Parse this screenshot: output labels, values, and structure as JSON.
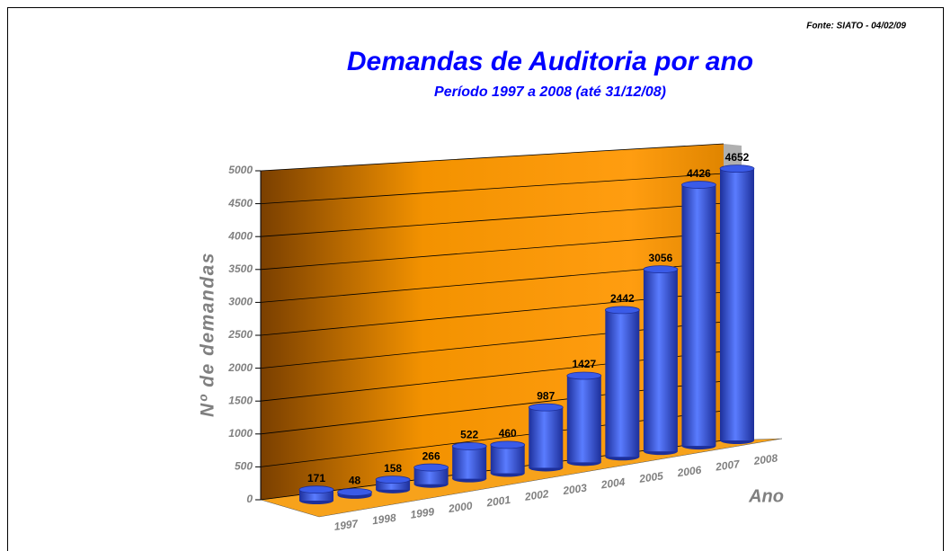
{
  "chart_data": {
    "type": "bar3d",
    "title": "Demandas de Auditoria por ano",
    "subtitle": "Período 1997 a 2008 (até 31/12/08)",
    "source": "Fonte: SIATO - 04/02/09",
    "y_label": "Nº de demandas",
    "x_label": "Ano",
    "categories": [
      "1997",
      "1998",
      "1999",
      "2000",
      "2001",
      "2002",
      "2003",
      "2004",
      "2005",
      "2006",
      "2007",
      "2008"
    ],
    "values": [
      171,
      48,
      158,
      266,
      522,
      460,
      987,
      1427,
      2442,
      3056,
      4426,
      4652
    ],
    "color": "#3a5be8",
    "ylim": [
      0,
      5000
    ],
    "yticks": [
      0,
      500,
      1000,
      1500,
      2000,
      2500,
      3000,
      3500,
      4000,
      4500,
      5000
    ],
    "grid": true
  }
}
